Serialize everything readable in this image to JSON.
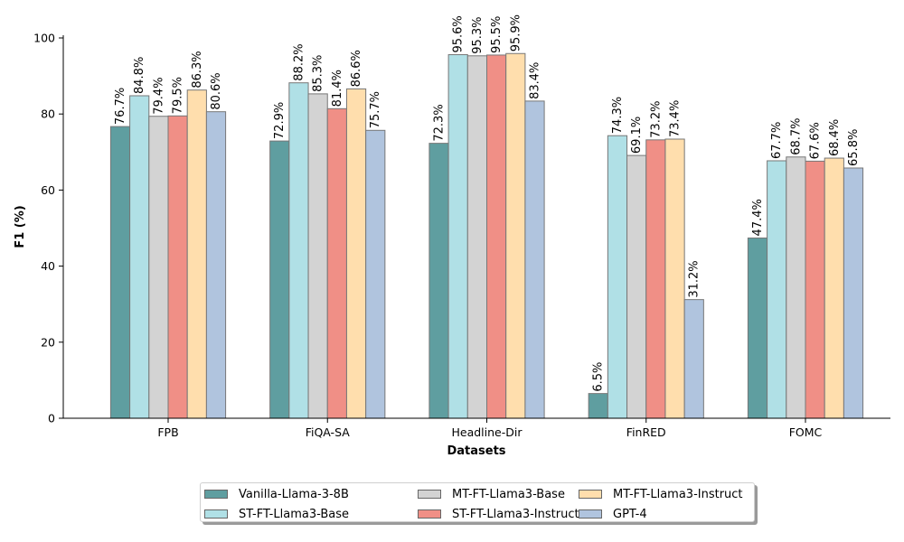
{
  "chart_data": {
    "type": "bar",
    "title": "",
    "xlabel": "Datasets",
    "ylabel": "F1 (%)",
    "ylim": [
      0,
      100
    ],
    "yticks": [
      0,
      20,
      40,
      60,
      80,
      100
    ],
    "categories": [
      "FPB",
      "FiQA-SA",
      "Headline-Dir",
      "FinRED",
      "FOMC"
    ],
    "series": [
      {
        "name": "Vanilla-Llama-3-8B",
        "color": "#5f9ea0",
        "values": [
          76.7,
          72.9,
          72.3,
          6.5,
          47.4
        ],
        "labels": [
          "76.7%",
          "72.9%",
          "72.3%",
          "6.5%",
          "47.4%"
        ]
      },
      {
        "name": "ST-FT-Llama3-Base",
        "color": "#b0e0e6",
        "values": [
          84.8,
          88.2,
          95.6,
          74.3,
          67.7
        ],
        "labels": [
          "84.8%",
          "88.2%",
          "95.6%",
          "74.3%",
          "67.7%"
        ]
      },
      {
        "name": "MT-FT-Llama3-Base",
        "color": "#d3d3d3",
        "values": [
          79.4,
          85.3,
          95.3,
          69.1,
          68.7
        ],
        "labels": [
          "79.4%",
          "85.3%",
          "95.3%",
          "69.1%",
          "68.7%"
        ]
      },
      {
        "name": "ST-FT-Llama3-Instruct",
        "color": "#f08f86",
        "values": [
          79.5,
          81.4,
          95.5,
          73.2,
          67.6
        ],
        "labels": [
          "79.5%",
          "81.4%",
          "95.5%",
          "73.2%",
          "67.6%"
        ]
      },
      {
        "name": "MT-FT-Llama3-Instruct",
        "color": "#ffdead",
        "values": [
          86.3,
          86.6,
          95.9,
          73.4,
          68.4
        ],
        "labels": [
          "86.3%",
          "86.6%",
          "95.9%",
          "73.4%",
          "68.4%"
        ]
      },
      {
        "name": "GPT-4",
        "color": "#b0c4de",
        "values": [
          80.6,
          75.7,
          83.4,
          31.2,
          65.8
        ],
        "labels": [
          "80.6%",
          "75.7%",
          "83.4%",
          "31.2%",
          "65.8%"
        ]
      }
    ],
    "legend_position": "bottom-center",
    "grid": false
  }
}
